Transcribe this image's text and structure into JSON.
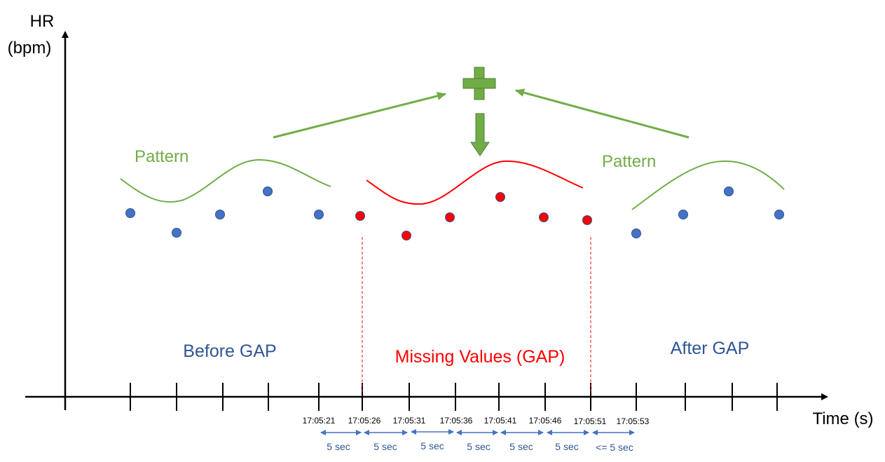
{
  "axes": {
    "y_title_line1": "HR",
    "y_title_line2": "(bpm)",
    "x_title": "Time (s)"
  },
  "labels": {
    "pattern_left": "Pattern",
    "pattern_right": "Pattern",
    "before_gap": "Before GAP",
    "missing_values": "Missing Values (GAP)",
    "after_gap": "After GAP"
  },
  "time_labels": [
    "17:05:21",
    "17:05:26",
    "17:05:31",
    "17:05:36",
    "17:05:41",
    "17:05:46",
    "17:05:51",
    "17:05:53"
  ],
  "intervals": [
    "5 sec",
    "5 sec",
    "5 sec",
    "5 sec",
    "5 sec",
    "5 sec",
    "<= 5 sec"
  ],
  "colors": {
    "observed_point": "#4472c4",
    "missing_point": "#ff0000",
    "pattern": "#70ad47",
    "imputed_curve": "#ff0000",
    "section_blue": "#2f5597",
    "section_red": "#ff0000"
  },
  "icons": {
    "combine": "plus-icon",
    "result": "down-arrow-icon"
  }
}
